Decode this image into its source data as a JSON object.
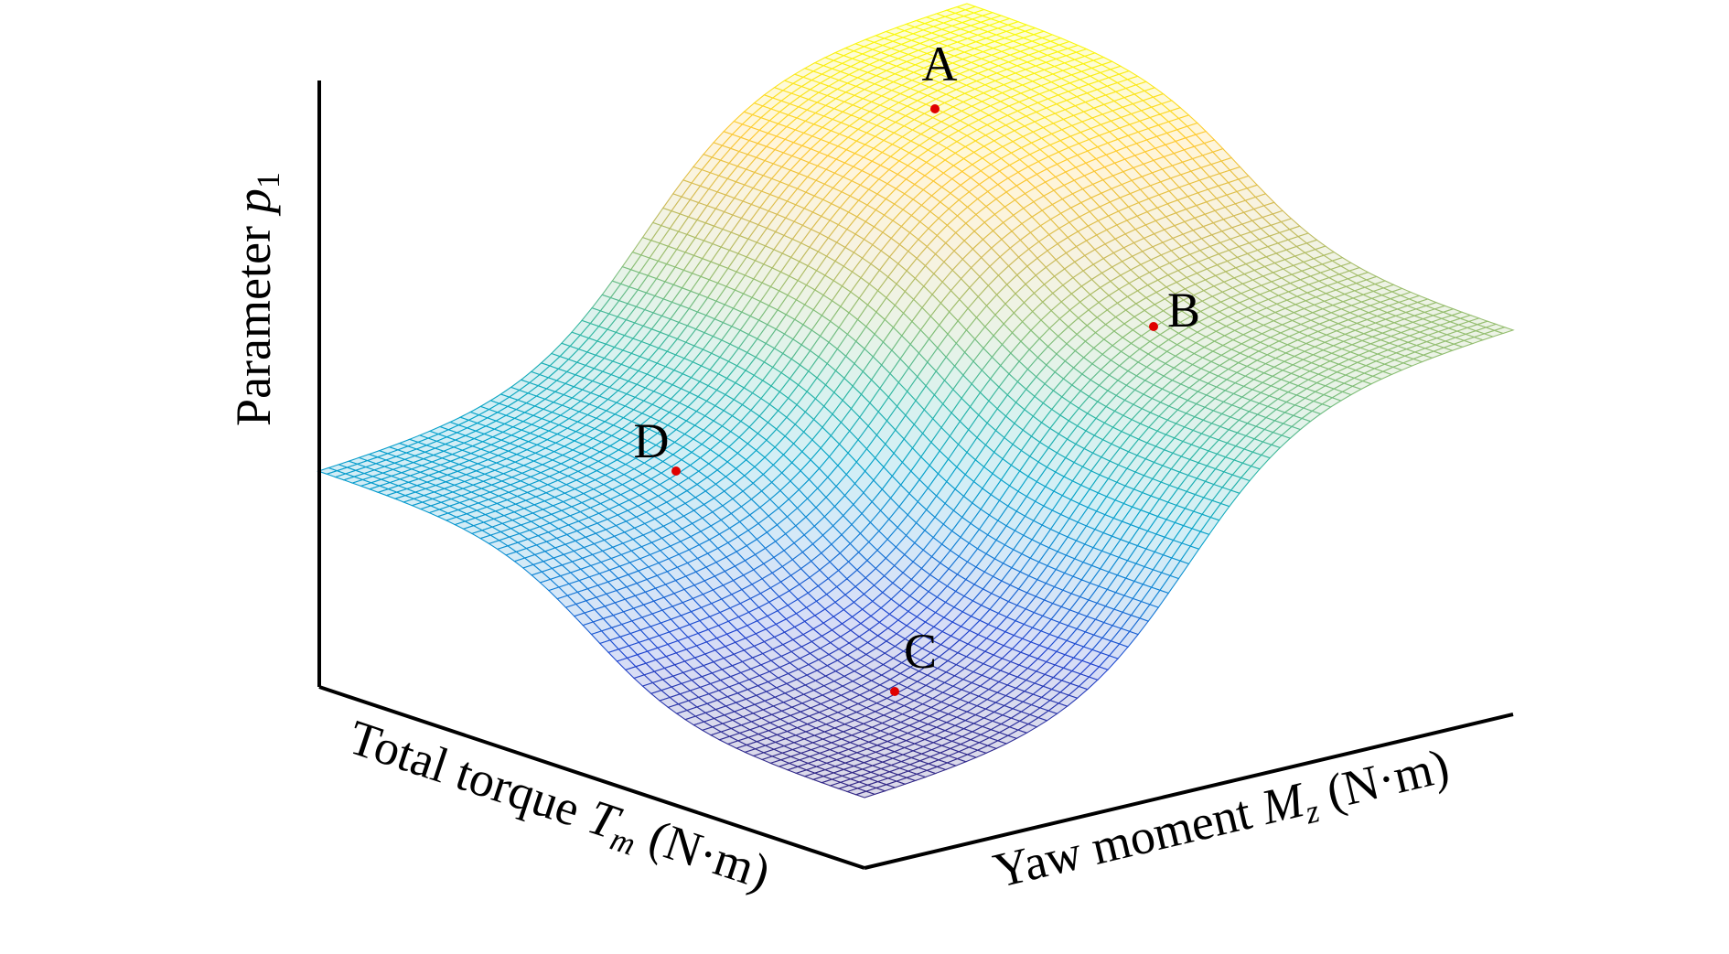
{
  "chart_data": {
    "type": "surface",
    "zlabel": {
      "text": "Parameter",
      "var": "p",
      "sub": "1"
    },
    "xlabel": {
      "text": "Total torque",
      "var": "T",
      "sub": "m",
      "unit": "(N·m)"
    },
    "ylabel": {
      "text": "Yaw moment",
      "var": "M",
      "sub": "z",
      "unit": "(N·m)"
    },
    "points": [
      {
        "label": "A",
        "color": "#e00000"
      },
      {
        "label": "B",
        "color": "#e00000"
      },
      {
        "label": "C",
        "color": "#e00000"
      },
      {
        "label": "D",
        "color": "#e00000"
      }
    ]
  }
}
